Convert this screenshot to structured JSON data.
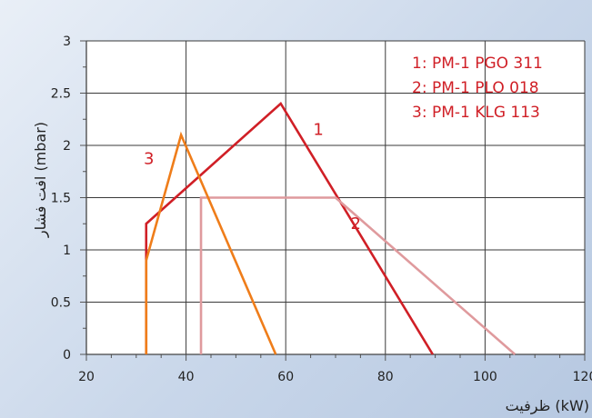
{
  "chart_data": {
    "type": "line",
    "title": "",
    "xlabel": "ظرفیت (kW)",
    "ylabel": "افت فشار (mbar)",
    "xlim": [
      20,
      120
    ],
    "ylim": [
      0,
      3
    ],
    "x_ticks": [
      "20",
      "40",
      "60",
      "80",
      "100",
      "120"
    ],
    "y_ticks": [
      "0",
      "0.5",
      "1",
      "1.5",
      "2",
      "2.5",
      "3"
    ],
    "grid": {
      "x_major": true,
      "y_major": true
    },
    "legend": {
      "placement": "top-right",
      "entries": [
        "1: PM-1 PGO 311",
        "2: PM-1 PLO 018",
        "3: PM-1 KLG 113"
      ]
    },
    "series": [
      {
        "label": "1",
        "color": "#d01f26",
        "points": [
          [
            32,
            0
          ],
          [
            32,
            1.25
          ],
          [
            59,
            2.4
          ],
          [
            89.5,
            0
          ]
        ],
        "label_at": [
          65.5,
          2.1
        ]
      },
      {
        "label": "2",
        "color": "#df9a9d",
        "points": [
          [
            43,
            0
          ],
          [
            43,
            1.5
          ],
          [
            70,
            1.5
          ],
          [
            106,
            0
          ]
        ],
        "label_at": [
          73,
          1.2
        ]
      },
      {
        "label": "3",
        "color": "#ef7d1a",
        "points": [
          [
            32,
            0
          ],
          [
            32,
            0.9
          ],
          [
            39,
            2.1
          ],
          [
            58,
            0
          ]
        ],
        "label_at": [
          31.5,
          1.82
        ]
      }
    ]
  }
}
